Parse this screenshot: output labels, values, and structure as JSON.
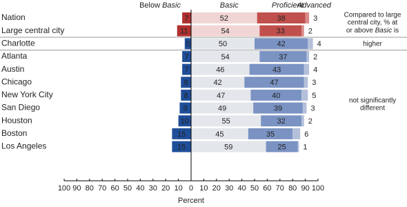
{
  "chart_data": {
    "type": "diverging-stacked-bar",
    "categories": [
      "Nation",
      "Large central city",
      "Charlotte",
      "Atlanta",
      "Austin",
      "Chicago",
      "New York City",
      "San Diego",
      "Houston",
      "Boston",
      "Los Angeles"
    ],
    "highlighted": [
      true,
      true,
      false,
      false,
      false,
      false,
      false,
      false,
      false,
      false,
      false
    ],
    "highlight_text_color": "#b0302a",
    "series": [
      {
        "name": "Below Basic",
        "color": "#1f4e99",
        "highlight_color": "#b03030",
        "values": [
          7,
          11,
          5,
          7,
          7,
          8,
          8,
          9,
          10,
          15,
          15
        ]
      },
      {
        "name": "Basic",
        "color": "#e3e7eb",
        "highlight_color": "#f1d5d5",
        "values": [
          52,
          54,
          50,
          54,
          46,
          42,
          47,
          49,
          55,
          45,
          59
        ]
      },
      {
        "name": "Proficient",
        "color": "#7b93c3",
        "highlight_color": "#c0504d",
        "values": [
          38,
          33,
          42,
          37,
          43,
          47,
          40,
          39,
          32,
          35,
          25
        ]
      },
      {
        "name": "Advanced",
        "color": "#b4c0da",
        "highlight_color": "#d98c8a",
        "values": [
          3,
          2,
          4,
          2,
          4,
          3,
          5,
          3,
          2,
          6,
          1
        ]
      }
    ],
    "xlim": [
      -100,
      100
    ],
    "xticks": [
      {
        "value": -100,
        "label": "100"
      },
      {
        "value": -90,
        "label": "90"
      },
      {
        "value": -80,
        "label": "80"
      },
      {
        "value": -70,
        "label": "70"
      },
      {
        "value": -60,
        "label": "60"
      },
      {
        "value": -50,
        "label": "50"
      },
      {
        "value": -40,
        "label": "40"
      },
      {
        "value": -30,
        "label": "30"
      },
      {
        "value": -20,
        "label": "20"
      },
      {
        "value": -10,
        "label": "10"
      },
      0,
      10,
      20,
      30,
      40,
      50,
      60,
      70,
      80,
      90,
      100
    ],
    "xlabel": "Percent",
    "comparison_note": [
      "Compared to large",
      "central city, % at",
      "or above Basic is"
    ],
    "higher_label": "higher",
    "not_different_label": [
      "not significantly",
      "different"
    ]
  }
}
